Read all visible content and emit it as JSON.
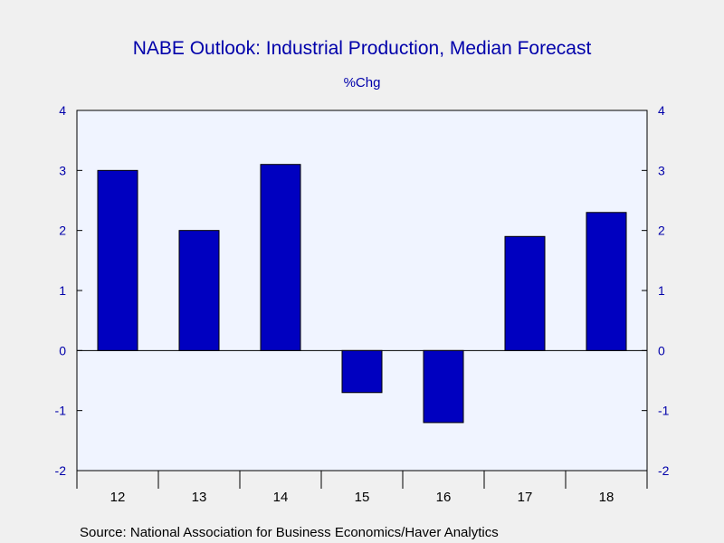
{
  "colors": {
    "background": "#f0f0f0",
    "plot_background": "#f0f4ff",
    "bar": "#0000c0",
    "text_accent": "#0000aa",
    "text_dark": "#000000"
  },
  "source": "Source:  National Association for Business Economics/Haver Analytics",
  "chart_data": {
    "type": "bar",
    "title": "NABE Outlook: Industrial Production, Median Forecast",
    "subtitle": "%Chg",
    "xlabel": "",
    "ylabel": "",
    "categories": [
      "12",
      "13",
      "14",
      "15",
      "16",
      "17",
      "18"
    ],
    "values": [
      3.0,
      2.0,
      3.1,
      -0.7,
      -1.2,
      1.9,
      2.3
    ],
    "ylim": [
      -2,
      4
    ],
    "yticks": [
      -2,
      -1,
      0,
      1,
      2,
      3,
      4
    ],
    "ytick_labels": [
      "-2",
      "-1",
      "0",
      "1",
      "2",
      "3",
      "4"
    ],
    "grid": false,
    "legend": "none",
    "y_axis_sides": [
      "left",
      "right"
    ]
  }
}
